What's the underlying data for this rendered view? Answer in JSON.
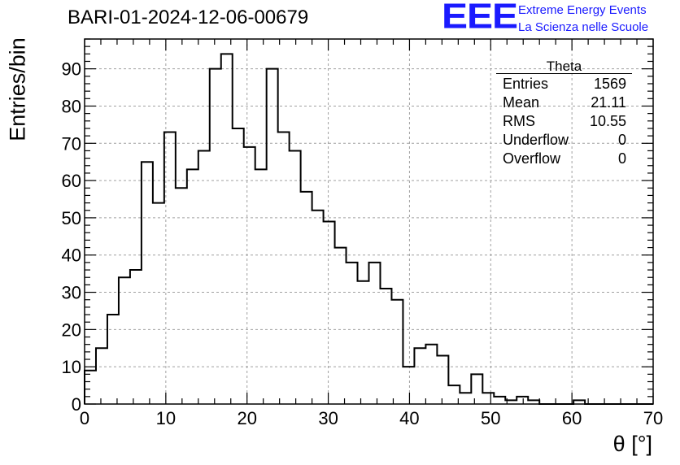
{
  "header": {
    "run_title": "BARI-01-2024-12-06-00679",
    "logo_text": "EEE",
    "logo_line1": "Extreme Energy Events",
    "logo_line2": "La Scienza nelle Scuole",
    "logo_color": "#1a1aff"
  },
  "stats": {
    "title": "Theta",
    "rows": [
      {
        "label": "Entries",
        "value": "1569"
      },
      {
        "label": "Mean",
        "value": "21.11"
      },
      {
        "label": "RMS",
        "value": "10.55"
      },
      {
        "label": "Underflow",
        "value": "0"
      },
      {
        "label": "Overflow",
        "value": "0"
      }
    ]
  },
  "chart_data": {
    "type": "bar",
    "histogram": true,
    "xlabel": "θ [°]",
    "ylabel": "Entries/bin",
    "xlim": [
      0,
      70
    ],
    "ylim": [
      0,
      98
    ],
    "x_ticks": [
      0,
      10,
      20,
      30,
      40,
      50,
      60,
      70
    ],
    "y_ticks": [
      0,
      10,
      20,
      30,
      40,
      50,
      60,
      70,
      80,
      90
    ],
    "grid": true,
    "bin_width": 1.4,
    "bin_edges_start": 0,
    "values": [
      9,
      15,
      24,
      34,
      36,
      65,
      54,
      73,
      58,
      63,
      68,
      90,
      94,
      74,
      69,
      63,
      90,
      73,
      68,
      57,
      52,
      49,
      42,
      38,
      33,
      38,
      31,
      28,
      10,
      15,
      16,
      13,
      5,
      3,
      8,
      3,
      2,
      1,
      2,
      1,
      0,
      0,
      0,
      1,
      0,
      0,
      0,
      0,
      0,
      0
    ]
  }
}
